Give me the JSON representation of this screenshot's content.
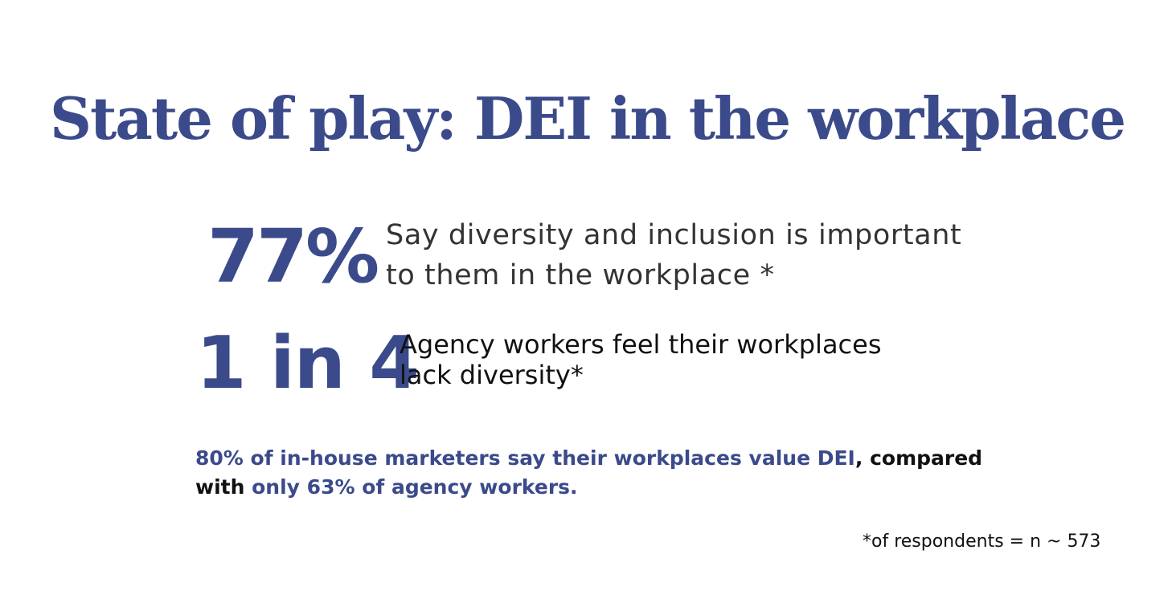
{
  "title": "State of play: DEI in the workplace",
  "stats": [
    {
      "figure": "77%",
      "lines": [
        "Say diversity and inclusion is important",
        "to them in the workplace *"
      ]
    },
    {
      "figure": "1 in 4",
      "lines": [
        "Agency workers feel their workplaces",
        "lack diversity*"
      ]
    }
  ],
  "summary": {
    "part1_highlight": "80% of in-house marketers say their workplaces value DEI",
    "part2": ", compared",
    "part3": "with ",
    "part4_highlight": "only 63% of agency workers."
  },
  "footnote": "*of respondents = n ~ 573",
  "colors": {
    "accent": "#3b4a8a",
    "text": "#111111",
    "background": "#ffffff"
  }
}
